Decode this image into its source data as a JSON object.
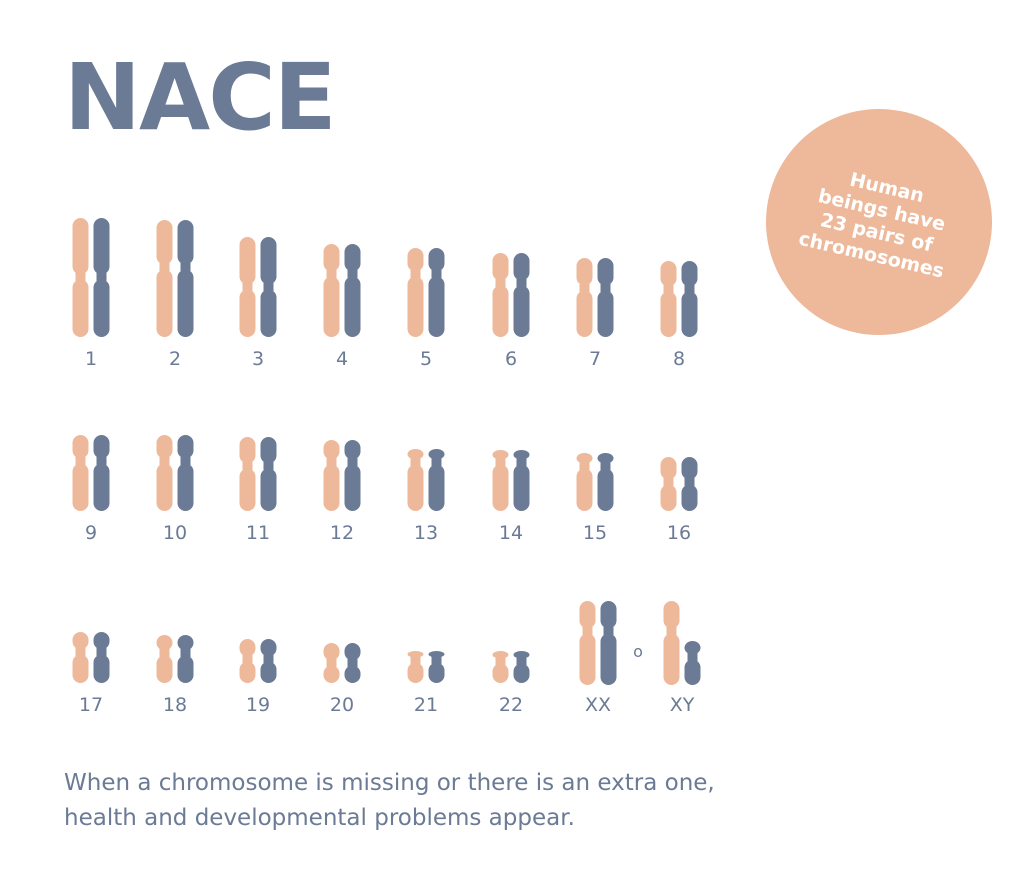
{
  "title": "NACE",
  "badge": {
    "text": "Human\nbeings have\n23 pairs of\nchromosomes"
  },
  "colors": {
    "maternal": "#eeb89a",
    "paternal": "#6b7a95",
    "badge": "#eeb89a",
    "text": "#6b7a95"
  },
  "chromosome_pairs": [
    {
      "label": "1"
    },
    {
      "label": "2"
    },
    {
      "label": "3"
    },
    {
      "label": "4"
    },
    {
      "label": "5"
    },
    {
      "label": "6"
    },
    {
      "label": "7"
    },
    {
      "label": "8"
    },
    {
      "label": "9"
    },
    {
      "label": "10"
    },
    {
      "label": "11"
    },
    {
      "label": "12"
    },
    {
      "label": "13"
    },
    {
      "label": "14"
    },
    {
      "label": "15"
    },
    {
      "label": "16"
    },
    {
      "label": "17"
    },
    {
      "label": "18"
    },
    {
      "label": "19"
    },
    {
      "label": "20"
    },
    {
      "label": "21"
    },
    {
      "label": "22"
    },
    {
      "label": "XX"
    },
    {
      "label": "XY"
    }
  ],
  "separator_symbol": "o",
  "caption": {
    "line1": "When a chromosome is missing or there is an extra one,",
    "line2": "health and developmental problems appear."
  }
}
